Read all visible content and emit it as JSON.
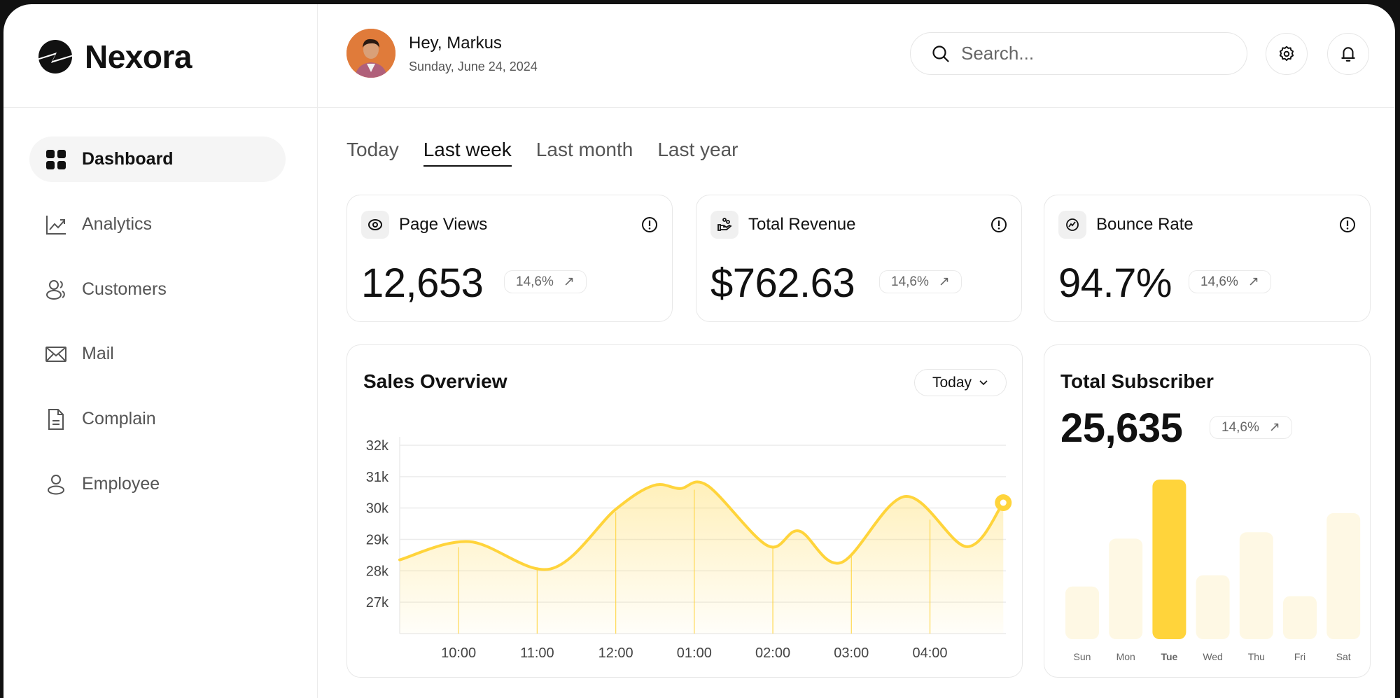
{
  "brand": {
    "name": "Nexora"
  },
  "header": {
    "greeting": "Hey, Markus",
    "date": "Sunday, June 24, 2024",
    "search_placeholder": "Search..."
  },
  "sidebar": {
    "items": [
      {
        "label": "Dashboard",
        "icon": "grid-icon",
        "active": true
      },
      {
        "label": "Analytics",
        "icon": "trend-chart-icon"
      },
      {
        "label": "Customers",
        "icon": "users-icon"
      },
      {
        "label": "Mail",
        "icon": "mail-icon"
      },
      {
        "label": "Complain",
        "icon": "document-icon"
      },
      {
        "label": "Employee",
        "icon": "user-icon"
      }
    ]
  },
  "tabs": [
    {
      "label": "Today"
    },
    {
      "label": "Last week",
      "active": true
    },
    {
      "label": "Last month"
    },
    {
      "label": "Last year"
    }
  ],
  "metrics": [
    {
      "title": "Page Views",
      "value": "12,653",
      "change": "14,6%",
      "icon": "eye-icon"
    },
    {
      "title": "Total Revenue",
      "value": "$762.63",
      "change": "14,6%",
      "icon": "hand-coins-icon"
    },
    {
      "title": "Bounce Rate",
      "value": "94.7%",
      "change": "14,6%",
      "icon": "trend-circle-icon"
    }
  ],
  "colors": {
    "accent": "#FFD43B",
    "accent_light": "#FEF8E4",
    "text": "#111111",
    "muted": "#555555"
  },
  "sales": {
    "title": "Sales Overview",
    "range": "Today"
  },
  "subscriber": {
    "title": "Total Subscriber",
    "value": "25,635",
    "change": "14,6%"
  },
  "chart_data": [
    {
      "type": "area",
      "title": "Sales Overview",
      "xlabel": "",
      "ylabel": "",
      "x_ticks": [
        "10:00",
        "11:00",
        "12:00",
        "01:00",
        "02:00",
        "03:00",
        "04:00"
      ],
      "y_ticks": [
        "27k",
        "28k",
        "29k",
        "30k",
        "31k",
        "32k"
      ],
      "ylim": [
        26000,
        32000
      ],
      "xlim": [
        "09:15",
        "04:58"
      ],
      "grid": true,
      "points": [
        {
          "x": "09:15",
          "y": 28350
        },
        {
          "x": "10:08",
          "y": 28930
        },
        {
          "x": "11:10",
          "y": 28060
        },
        {
          "x": "12:00",
          "y": 29960
        },
        {
          "x": "12:29",
          "y": 30720
        },
        {
          "x": "12:49",
          "y": 30620
        },
        {
          "x": "01:10",
          "y": 30720
        },
        {
          "x": "01:56",
          "y": 28800
        },
        {
          "x": "02:20",
          "y": 29270
        },
        {
          "x": "02:52",
          "y": 28260
        },
        {
          "x": "03:41",
          "y": 30370
        },
        {
          "x": "04:28",
          "y": 28770
        },
        {
          "x": "04:56",
          "y": 30170
        }
      ],
      "highlight_last_point": true
    },
    {
      "type": "bar",
      "title": "Total Subscriber",
      "categories": [
        "Sun",
        "Mon",
        "Tue",
        "Wed",
        "Thu",
        "Fri",
        "Sat"
      ],
      "values_relative_percent": [
        33,
        63,
        100,
        40,
        67,
        27,
        79
      ],
      "highlighted": "Tue"
    }
  ]
}
